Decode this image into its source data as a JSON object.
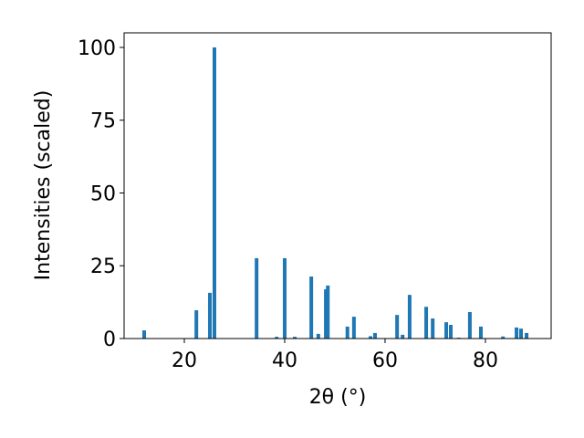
{
  "chart_data": {
    "type": "bar",
    "xlabel": "2θ (°)",
    "ylabel": "Intensities (scaled)",
    "x": [
      12,
      22.4,
      25.1,
      26.0,
      34.4,
      38.4,
      40.0,
      42.0,
      45.3,
      46.7,
      48.2,
      48.6,
      52.5,
      53.8,
      57.1,
      58.0,
      62.4,
      63.5,
      64.9,
      68.2,
      69.5,
      72.2,
      73.1,
      74.7,
      76.9,
      79.1,
      83.5,
      86.2,
      87.1,
      88.2
    ],
    "values": [
      2.8,
      9.7,
      15.7,
      100,
      27.6,
      0.6,
      27.6,
      0.6,
      21.3,
      1.6,
      16.9,
      18.2,
      4.1,
      7.5,
      0.8,
      1.9,
      8.1,
      1.3,
      15,
      10.9,
      6.9,
      5.6,
      4.7,
      0.3,
      9.1,
      4.1,
      0.7,
      3.8,
      3.4,
      1.9
    ],
    "color": "#1f77b4",
    "xlim": [
      8,
      93.1
    ],
    "xticks": [
      20,
      40,
      60,
      80
    ],
    "ylim": [
      0,
      105
    ],
    "yticks": [
      0,
      25,
      50,
      75,
      100
    ],
    "grid": false
  }
}
